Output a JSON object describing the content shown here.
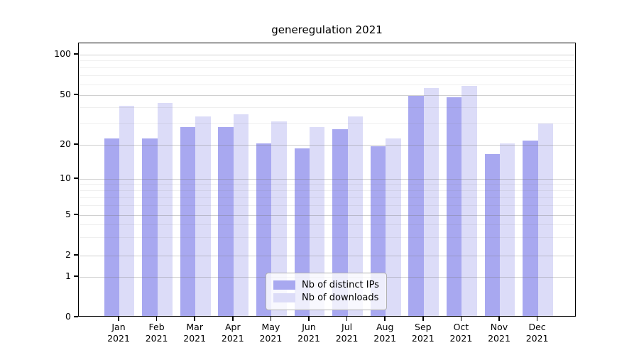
{
  "title": "generegulation 2021",
  "legend": {
    "items": [
      {
        "label": "Nb of distinct IPs",
        "color": "#a8a8f0"
      },
      {
        "label": "Nb of downloads",
        "color": "#dcdcf8"
      }
    ]
  },
  "axes": {
    "ytick_labels": [
      "0",
      "1",
      "2",
      "5",
      "10",
      "20",
      "50",
      "100"
    ],
    "xtick_year": "2021"
  },
  "chart_data": {
    "type": "bar",
    "title": "generegulation 2021",
    "categories": [
      "Jan",
      "Feb",
      "Mar",
      "Apr",
      "May",
      "Jun",
      "Jul",
      "Aug",
      "Sep",
      "Oct",
      "Nov",
      "Dec"
    ],
    "category_year": "2021",
    "series": [
      {
        "name": "Nb of distinct IPs",
        "color": "#a8a8f0",
        "values": [
          22,
          22,
          27,
          27,
          20,
          18,
          26,
          19,
          48,
          47,
          16,
          21
        ]
      },
      {
        "name": "Nb of downloads",
        "color": "#dcdcf8",
        "values": [
          40,
          42,
          33,
          34,
          30,
          27,
          33,
          22,
          55,
          57,
          20,
          29
        ]
      }
    ],
    "xlabel": "",
    "ylabel": "",
    "yscale": "symlog",
    "yticks": [
      0,
      1,
      2,
      5,
      10,
      20,
      50,
      100
    ],
    "minor_gridlines": [
      3,
      4,
      6,
      7,
      8,
      9,
      30,
      40,
      60,
      70,
      80,
      90
    ],
    "ylim": [
      0,
      120
    ],
    "grid": true,
    "legend_position": "lower center"
  }
}
